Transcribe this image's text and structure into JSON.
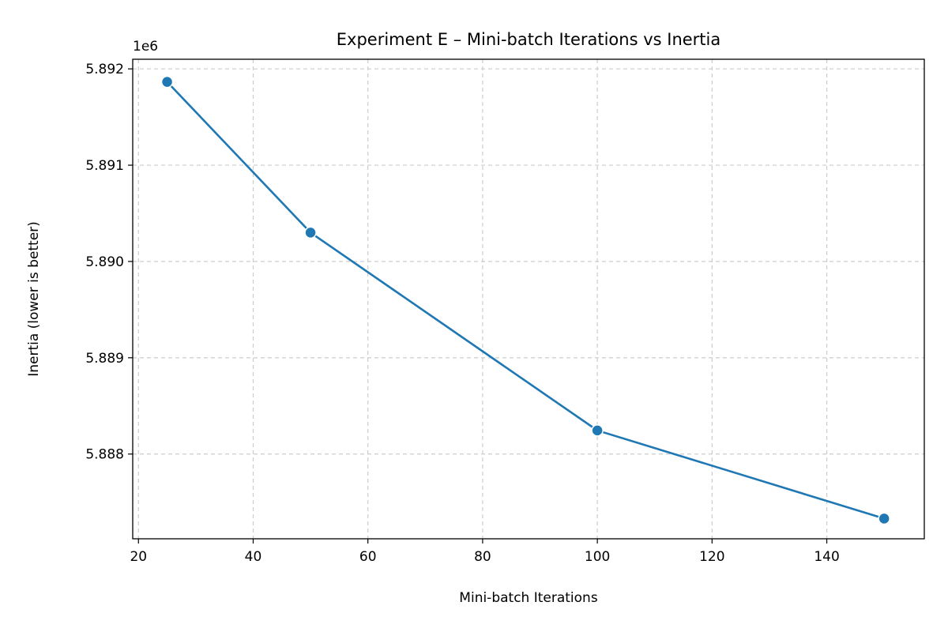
{
  "chart_data": {
    "type": "line",
    "title": "Experiment E – Mini-batch Iterations vs Inertia",
    "xlabel": "Mini-batch Iterations",
    "ylabel": "Inertia (lower is better)",
    "y_offset_label": "1e6",
    "x": [
      25,
      50,
      100,
      150
    ],
    "series": [
      {
        "values": [
          5891865,
          5890300,
          5888245,
          5887330
        ]
      }
    ],
    "xlim": [
      19,
      157
    ],
    "ylim": [
      5887120,
      5892100
    ],
    "xticks": [
      20,
      40,
      60,
      80,
      100,
      120,
      140
    ],
    "xtick_labels": [
      "20",
      "40",
      "60",
      "80",
      "100",
      "120",
      "140"
    ],
    "yticks": [
      5888000,
      5889000,
      5890000,
      5891000,
      5892000
    ],
    "ytick_labels": [
      "5.888",
      "5.889",
      "5.890",
      "5.891",
      "5.892"
    ],
    "grid": true,
    "color": "#1f77b4"
  }
}
